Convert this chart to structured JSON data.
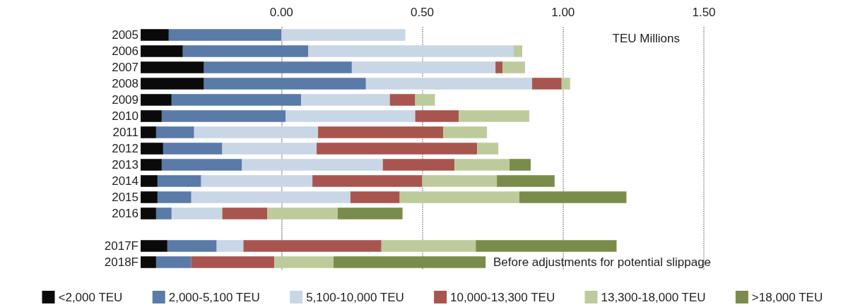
{
  "chart_data": {
    "type": "bar",
    "orientation": "horizontal",
    "xlabel": "TEU Millions",
    "categories": [
      "2005",
      "2006",
      "2007",
      "2008",
      "2009",
      "2010",
      "2011",
      "2012",
      "2013",
      "2014",
      "2015",
      "2016",
      null,
      "2017F",
      "2018F"
    ],
    "series": [
      {
        "name": "<2,000 TEU",
        "color": "#0a0a0a",
        "values": [
          0.1,
          0.15,
          0.225,
          0.225,
          0.11,
          0.075,
          0.055,
          0.08,
          0.075,
          0.06,
          0.06,
          0.055,
          null,
          0.095,
          0.055
        ],
        "base": [
          -0.5,
          -0.5,
          -0.5,
          -0.5,
          -0.5,
          -0.5,
          -0.5,
          -0.5,
          -0.5,
          -0.5,
          -0.5,
          -0.5,
          null,
          -0.5,
          -0.5
        ]
      },
      {
        "name": "2,000-5,100 TEU",
        "color": "#5a7aa8",
        "values": [
          0.4,
          0.445,
          0.525,
          0.575,
          0.46,
          0.44,
          0.135,
          0.21,
          0.285,
          0.155,
          0.12,
          0.055,
          null,
          0.175,
          0.125
        ],
        "base": [
          -0.4,
          -0.35,
          -0.275,
          -0.275,
          -0.39,
          -0.425,
          -0.445,
          -0.42,
          -0.425,
          -0.44,
          -0.44,
          -0.445,
          null,
          -0.405,
          -0.445
        ]
      },
      {
        "name": "5,100-10,000 TEU",
        "color": "#c8d6e6",
        "values": [
          0.44,
          0.73,
          0.51,
          0.59,
          0.315,
          0.46,
          0.44,
          0.335,
          0.5,
          0.395,
          0.565,
          0.18,
          null,
          0.095,
          null
        ],
        "base": [
          0,
          0.095,
          0.25,
          0.3,
          0.07,
          0.015,
          -0.31,
          -0.21,
          -0.14,
          -0.285,
          -0.32,
          -0.39,
          null,
          -0.23,
          null
        ]
      },
      {
        "name": "10,000-13,300 TEU",
        "color": "#a9554f",
        "values": [
          null,
          null,
          0.025,
          0.105,
          0.09,
          0.155,
          0.445,
          0.57,
          0.255,
          0.39,
          0.175,
          0.16,
          null,
          0.49,
          0.295
        ],
        "base": [
          null,
          null,
          0.76,
          0.89,
          0.385,
          0.475,
          0.13,
          0.125,
          0.36,
          0.11,
          0.245,
          -0.21,
          null,
          -0.135,
          -0.32
        ]
      },
      {
        "name": "13,300-18,000 TEU",
        "color": "#bdcb9c",
        "values": [
          null,
          0.03,
          0.08,
          0.03,
          0.07,
          0.25,
          0.155,
          0.075,
          0.195,
          0.265,
          0.425,
          0.25,
          null,
          0.335,
          0.21
        ],
        "base": [
          null,
          0.825,
          0.785,
          0.995,
          0.475,
          0.63,
          0.575,
          0.695,
          0.615,
          0.5,
          0.42,
          -0.05,
          null,
          0.355,
          -0.025
        ]
      },
      {
        "name": ">18,000 TEU",
        "color": "#7a8c4a",
        "values": [
          null,
          null,
          null,
          null,
          null,
          null,
          null,
          null,
          0.075,
          0.205,
          0.38,
          0.23,
          null,
          0.5,
          0.54
        ],
        "base": [
          null,
          null,
          null,
          null,
          null,
          null,
          null,
          null,
          0.81,
          0.765,
          0.845,
          0.2,
          null,
          0.69,
          0.185
        ]
      }
    ],
    "xlim": [
      -0.5,
      1.5
    ],
    "xticks": [
      {
        "value": 0,
        "label": "0.00"
      },
      {
        "value": 0.5,
        "label": "0.50"
      },
      {
        "value": 1,
        "label": "1.00"
      },
      {
        "value": 1.5,
        "label": "1.50"
      }
    ],
    "grid": "x",
    "legend": "bottom",
    "annotations": [
      "Before adjustments for potential slippage"
    ]
  }
}
